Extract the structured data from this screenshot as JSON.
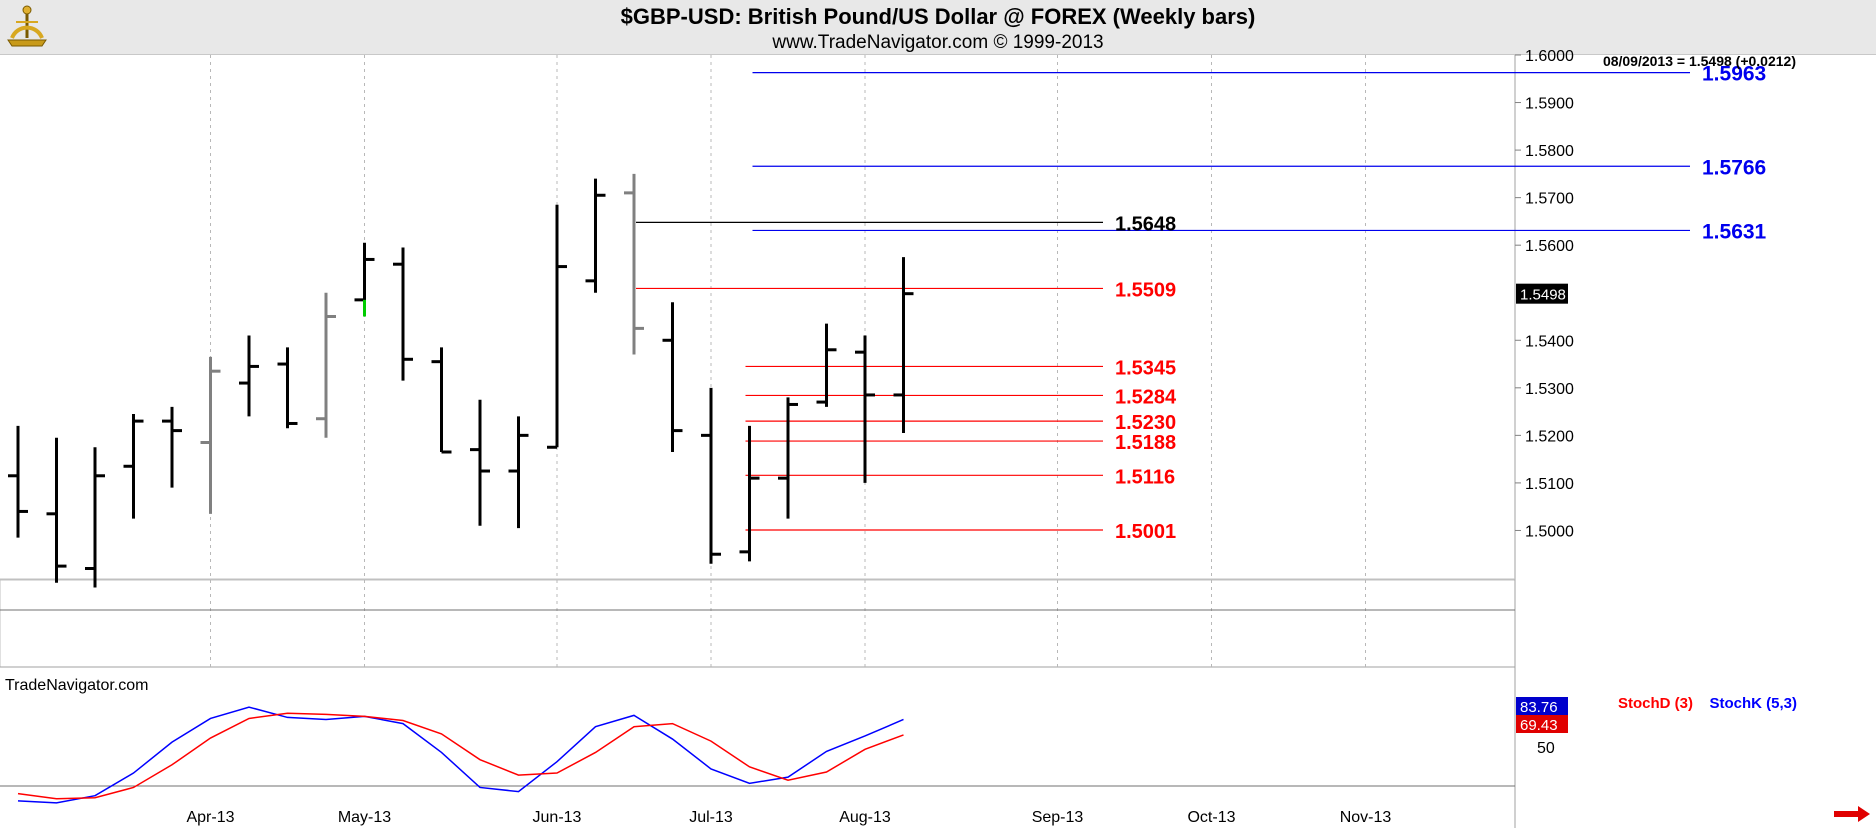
{
  "chart_data": {
    "type": "ohlc",
    "title": "$GBP-USD:  British Pound/US Dollar @ FOREX  (Weekly bars)",
    "subtitle": "www.TradeNavigator.com © 1999-2013",
    "watermark": "TradeNavigator.com",
    "last_quote": "08/09/2013 = 1.5498 (+0.0212)",
    "price_flag": "1.5498",
    "y_range": [
      1.49,
      1.6
    ],
    "y_ticks": [
      "1.6000",
      "1.5900",
      "1.5800",
      "1.5700",
      "1.5600",
      "1.5400",
      "1.5300",
      "1.5200",
      "1.5100",
      "1.5000"
    ],
    "x_labels": [
      {
        "label": "Apr-13",
        "week": 5
      },
      {
        "label": "May-13",
        "week": 9
      },
      {
        "label": "Jun-13",
        "week": 14
      },
      {
        "label": "Jul-13",
        "week": 18
      },
      {
        "label": "Aug-13",
        "week": 22
      },
      {
        "label": "Sep-13",
        "week": 27
      },
      {
        "label": "Oct-13",
        "week": 31
      },
      {
        "label": "Nov-13",
        "week": 35
      }
    ],
    "bars": [
      {
        "o": 1.5115,
        "h": 1.522,
        "l": 1.4985,
        "c": 1.504,
        "color": "#000000"
      },
      {
        "o": 1.5035,
        "h": 1.5195,
        "l": 1.489,
        "c": 1.4925,
        "color": "#000000"
      },
      {
        "o": 1.492,
        "h": 1.5175,
        "l": 1.488,
        "c": 1.5115,
        "color": "#000000"
      },
      {
        "o": 1.5135,
        "h": 1.5245,
        "l": 1.5025,
        "c": 1.523,
        "color": "#000000"
      },
      {
        "o": 1.523,
        "h": 1.526,
        "l": 1.509,
        "c": 1.521,
        "color": "#000000"
      },
      {
        "o": 1.5185,
        "h": 1.5365,
        "l": 1.5035,
        "c": 1.5335,
        "color": "#808080"
      },
      {
        "o": 1.531,
        "h": 1.541,
        "l": 1.524,
        "c": 1.5345,
        "color": "#000000"
      },
      {
        "o": 1.535,
        "h": 1.5385,
        "l": 1.5215,
        "c": 1.5225,
        "color": "#000000"
      },
      {
        "o": 1.5235,
        "h": 1.55,
        "l": 1.5195,
        "c": 1.545,
        "color": "#808080"
      },
      {
        "o": 1.5485,
        "h": 1.5605,
        "l": 1.545,
        "c": 1.557,
        "color": "#000000"
      },
      {
        "o": 1.556,
        "h": 1.5595,
        "l": 1.5315,
        "c": 1.536,
        "color": "#000000"
      },
      {
        "o": 1.5355,
        "h": 1.5385,
        "l": 1.5165,
        "c": 1.5165,
        "color": "#000000"
      },
      {
        "o": 1.517,
        "h": 1.5275,
        "l": 1.501,
        "c": 1.5125,
        "color": "#000000"
      },
      {
        "o": 1.5125,
        "h": 1.524,
        "l": 1.5005,
        "c": 1.52,
        "color": "#000000"
      },
      {
        "o": 1.5175,
        "h": 1.5685,
        "l": 1.5175,
        "c": 1.5555,
        "color": "#000000"
      },
      {
        "o": 1.5525,
        "h": 1.574,
        "l": 1.55,
        "c": 1.5705,
        "color": "#000000"
      },
      {
        "o": 1.571,
        "h": 1.575,
        "l": 1.537,
        "c": 1.5425,
        "color": "#808080"
      },
      {
        "o": 1.54,
        "h": 1.548,
        "l": 1.5165,
        "c": 1.521,
        "color": "#000000"
      },
      {
        "o": 1.52,
        "h": 1.53,
        "l": 1.493,
        "c": 1.495,
        "color": "#000000"
      },
      {
        "o": 1.4955,
        "h": 1.522,
        "l": 1.4935,
        "c": 1.511,
        "color": "#000000"
      },
      {
        "o": 1.511,
        "h": 1.528,
        "l": 1.5025,
        "c": 1.5265,
        "color": "#000000"
      },
      {
        "o": 1.527,
        "h": 1.5435,
        "l": 1.526,
        "c": 1.538,
        "color": "#000000"
      },
      {
        "o": 1.5375,
        "h": 1.541,
        "l": 1.51,
        "c": 1.5285,
        "color": "#000000"
      },
      {
        "o": 1.5285,
        "h": 1.5575,
        "l": 1.5205,
        "c": 1.5498,
        "color": "#000000"
      }
    ],
    "levels": [
      {
        "value": "1.5963",
        "color": "#0000ee",
        "group": "blue"
      },
      {
        "value": "1.5766",
        "color": "#0000ee",
        "group": "blue"
      },
      {
        "value": "1.5631",
        "color": "#0000ee",
        "group": "blue"
      },
      {
        "value": "1.5648",
        "color": "#000000",
        "group": "black"
      },
      {
        "value": "1.5509",
        "color": "#ff0000",
        "group": "red"
      },
      {
        "value": "1.5345",
        "color": "#ff0000",
        "group": "red"
      },
      {
        "value": "1.5284",
        "color": "#ff0000",
        "group": "red"
      },
      {
        "value": "1.5230",
        "color": "#ff0000",
        "group": "red"
      },
      {
        "value": "1.5188",
        "color": "#ff0000",
        "group": "red"
      },
      {
        "value": "1.5116",
        "color": "#ff0000",
        "group": "red"
      },
      {
        "value": "1.5001",
        "color": "#ff0000",
        "group": "red"
      }
    ],
    "stochastic": {
      "d_label": "StochD (3)",
      "k_label": "StochK (5,3)",
      "y_range": [
        0,
        100
      ],
      "y_tick": "50",
      "k_value": "83.76",
      "d_value": "69.43",
      "k_color": "#0000ff",
      "d_color": "#ff0000",
      "series": [
        {
          "name": "StochK (5,3)",
          "values": [
            5,
            3,
            10,
            32,
            62,
            85,
            96,
            86,
            84,
            87,
            80,
            52,
            18,
            14,
            43,
            77,
            88,
            65,
            36,
            22,
            28,
            53,
            68,
            84
          ]
        },
        {
          "name": "StochD (3)",
          "values": [
            12,
            7,
            8,
            18,
            40,
            66,
            85,
            90,
            89,
            87,
            83,
            70,
            45,
            30,
            32,
            52,
            77,
            80,
            63,
            38,
            25,
            33,
            55,
            69
          ]
        }
      ]
    }
  }
}
